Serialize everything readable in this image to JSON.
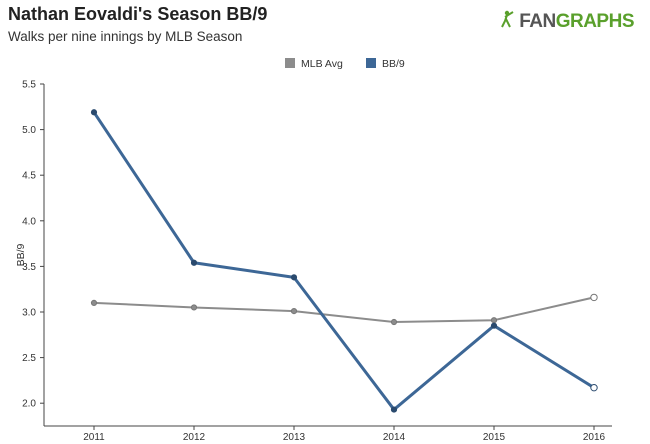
{
  "header": {
    "title": "Nathan Eovaldi's Season BB/9",
    "subtitle": "Walks per nine innings by MLB Season",
    "logo_text_a": "FAN",
    "logo_text_b": "GRAPHS"
  },
  "colors": {
    "mlb_avg": "#8c8c8c",
    "bb9": "#3d6796",
    "logo_green": "#5aa02c"
  },
  "chart_data": {
    "type": "line",
    "x": [
      "2011",
      "2012",
      "2013",
      "2014",
      "2015",
      "2016"
    ],
    "series": [
      {
        "name": "MLB Avg",
        "values": [
          3.1,
          3.05,
          3.01,
          2.89,
          2.91,
          3.16
        ],
        "color": "#8c8c8c",
        "open_last": true
      },
      {
        "name": "BB/9",
        "values": [
          5.19,
          3.54,
          3.38,
          1.93,
          2.85,
          2.17
        ],
        "color": "#3d6796",
        "open_last": true
      }
    ],
    "ylabel": "BB/9",
    "ylim": [
      1.75,
      5.5
    ],
    "yticks": [
      "2.0",
      "2.5",
      "3.0",
      "3.5",
      "4.0",
      "4.5",
      "5.0",
      "5.5"
    ],
    "grid": false,
    "legend": "top-center"
  }
}
